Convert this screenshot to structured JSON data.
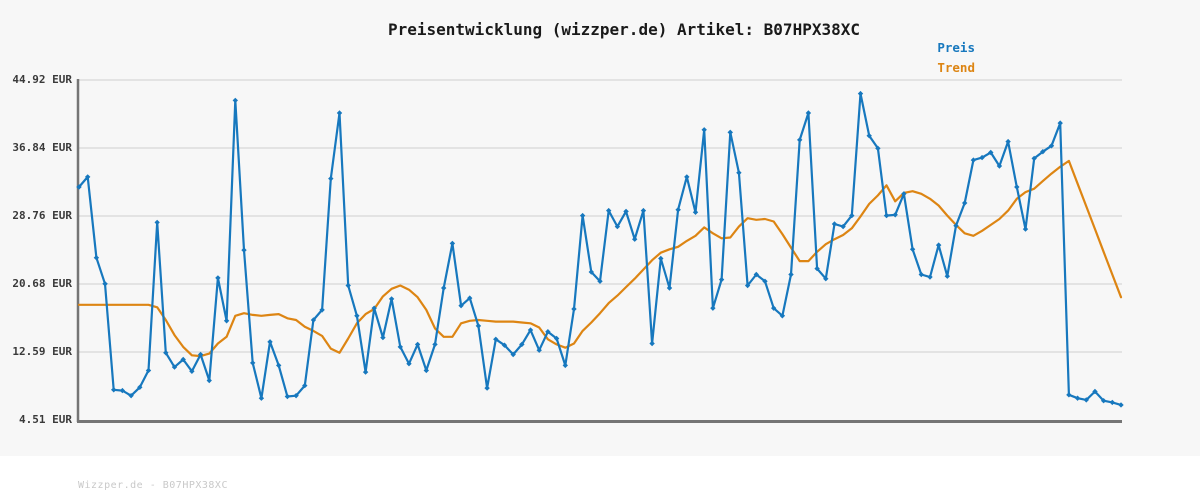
{
  "title": "Preisentwicklung (wizzper.de) Artikel: B07HPX38XC",
  "footer": "Wizzper.de - B07HPX38XC",
  "legend": [
    {
      "label": "Preis",
      "color": "#1778be"
    },
    {
      "label": "Trend",
      "color": "#dd8513"
    }
  ],
  "colors": {
    "figure_background": "#f7f7f7",
    "page_background": "#ffffff",
    "gridline": "#e3e3e3",
    "axis": "#757575",
    "price_line": "#1778be",
    "trend_line": "#dd8513",
    "title_text": "#1a1a1a",
    "tick_text": "#3a3a3a",
    "watermark_text": "#c9c9c9"
  },
  "chart_data": {
    "type": "line",
    "title": "Preisentwicklung (wizzper.de) Artikel: B07HPX38XC",
    "xlabel": "",
    "ylabel": "",
    "ylim": [
      4.51,
      44.92
    ],
    "y_ticks": [
      44.92,
      36.84,
      28.76,
      20.68,
      12.59,
      4.51
    ],
    "y_tick_labels": [
      "44.92 EUR",
      "36.84 EUR",
      "28.76 EUR",
      "20.68 EUR",
      "12.59 EUR",
      "4.51 EUR"
    ],
    "x_tick_labels": [],
    "grid": "horizontal",
    "legend_position": "top-right",
    "currency": "EUR",
    "series": [
      {
        "name": "Preis",
        "color": "#1778be",
        "marker": "diamond",
        "values": [
          32.2,
          33.4,
          23.8,
          20.7,
          8.1,
          8.0,
          7.4,
          8.4,
          10.4,
          28.0,
          12.5,
          10.8,
          11.7,
          10.3,
          12.3,
          9.2,
          21.4,
          16.3,
          42.5,
          24.7,
          11.3,
          7.1,
          13.8,
          11.0,
          7.3,
          7.4,
          8.6,
          16.4,
          17.6,
          33.2,
          41.0,
          20.5,
          16.9,
          10.2,
          17.8,
          14.3,
          18.9,
          13.2,
          11.2,
          13.5,
          10.4,
          13.5,
          20.2,
          25.5,
          18.1,
          19.0,
          15.7,
          8.3,
          14.1,
          13.4,
          12.3,
          13.5,
          15.2,
          12.8,
          15.0,
          14.2,
          11.0,
          17.7,
          28.8,
          22.1,
          21.0,
          29.4,
          27.5,
          29.3,
          26.0,
          29.4,
          13.6,
          23.7,
          20.2,
          29.5,
          33.4,
          29.2,
          39.0,
          17.8,
          21.2,
          38.7,
          33.9,
          20.5,
          21.8,
          21.0,
          17.8,
          16.9,
          21.8,
          37.8,
          41.0,
          22.5,
          21.3,
          27.8,
          27.5,
          28.8,
          43.3,
          38.3,
          36.8,
          28.8,
          28.9,
          31.4,
          24.8,
          21.8,
          21.5,
          25.3,
          21.6,
          27.6,
          30.3,
          35.4,
          35.7,
          36.3,
          34.7,
          37.6,
          32.2,
          27.2,
          35.6,
          36.4,
          37.1,
          39.8,
          7.5,
          7.1,
          6.9,
          7.9,
          6.8,
          6.6,
          6.3
        ]
      },
      {
        "name": "Trend",
        "color": "#dd8513",
        "marker": "none",
        "values": [
          18.2,
          18.2,
          18.2,
          18.2,
          18.2,
          18.2,
          18.2,
          18.2,
          18.2,
          17.9,
          16.4,
          14.6,
          13.2,
          12.2,
          12.1,
          12.4,
          13.6,
          14.4,
          16.9,
          17.2,
          17.0,
          16.9,
          17.0,
          17.1,
          16.6,
          16.4,
          15.6,
          15.1,
          14.5,
          13.0,
          12.5,
          14.2,
          16.0,
          17.1,
          17.7,
          19.2,
          20.1,
          20.5,
          20.0,
          19.1,
          17.6,
          15.4,
          14.4,
          14.4,
          16.0,
          16.3,
          16.4,
          16.3,
          16.2,
          16.2,
          16.2,
          16.1,
          16.0,
          15.5,
          14.1,
          13.5,
          13.1,
          13.6,
          15.1,
          16.1,
          17.2,
          18.4,
          19.3,
          20.3,
          21.3,
          22.4,
          23.5,
          24.4,
          24.8,
          25.1,
          25.8,
          26.4,
          27.4,
          26.7,
          26.1,
          26.2,
          27.5,
          28.5,
          28.3,
          28.4,
          28.1,
          26.6,
          25.0,
          23.4,
          23.4,
          24.5,
          25.4,
          26.0,
          26.5,
          27.3,
          28.7,
          30.2,
          31.2,
          32.4,
          30.5,
          31.5,
          31.7,
          31.4,
          30.8,
          30.0,
          28.8,
          27.7,
          26.7,
          26.4,
          27.0,
          27.7,
          28.4,
          29.4,
          30.8,
          31.6,
          32.0,
          32.9,
          33.8,
          34.6,
          35.3,
          32.6,
          29.9,
          27.2,
          24.5,
          21.8,
          19.1
        ]
      }
    ]
  }
}
